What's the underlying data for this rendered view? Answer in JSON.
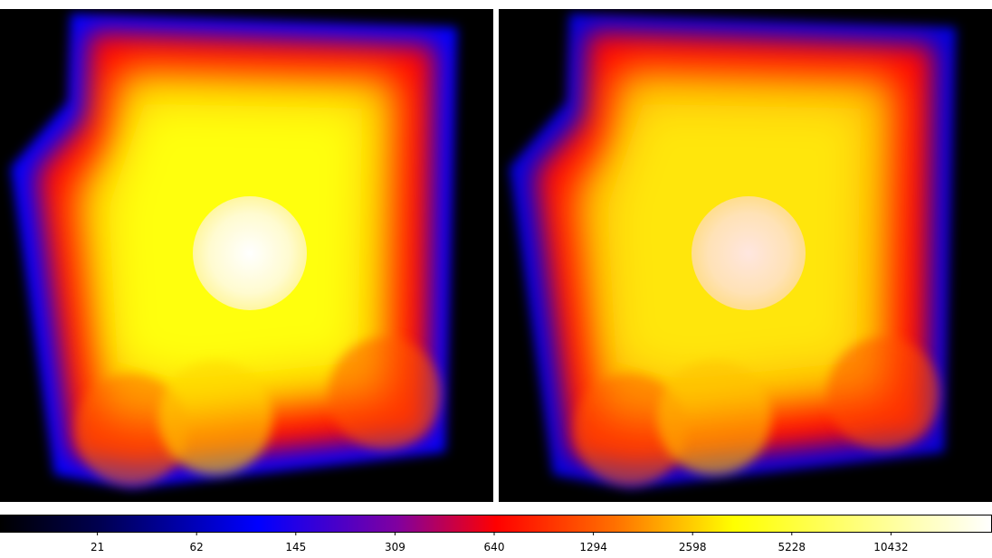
{
  "colorbar": {
    "ticks": [
      21,
      62,
      145,
      309,
      640,
      1294,
      2598,
      5228,
      10432
    ]
  }
}
